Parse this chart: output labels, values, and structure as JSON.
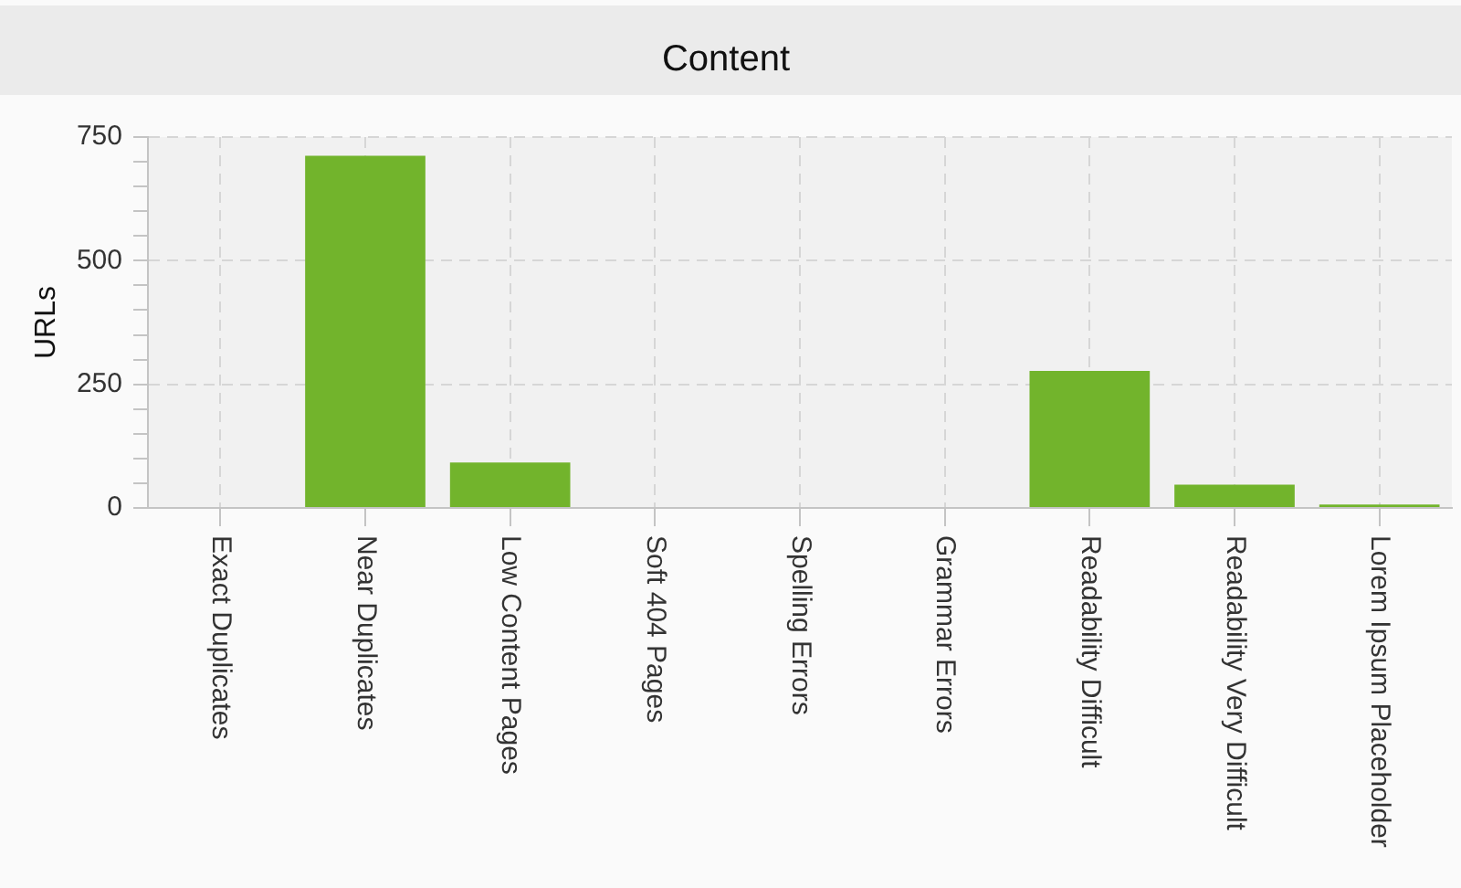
{
  "chart_data": {
    "type": "bar",
    "title": "Content",
    "ylabel": "URLs",
    "categories": [
      "Exact Duplicates",
      "Near Duplicates",
      "Low Content Pages",
      "Soft 404 Pages",
      "Spelling Errors",
      "Grammar Errors",
      "Readability Difficult",
      "Readability Very Difficult",
      "Lorem Ipsum Placeholder"
    ],
    "values": [
      0,
      712,
      92,
      0,
      0,
      0,
      277,
      47,
      7
    ],
    "color": "#72b42c",
    "ylim": [
      0,
      750
    ],
    "yticks": [
      0,
      {
        "value": 50,
        "label": null
      },
      {
        "value": 100,
        "label": null
      },
      {
        "value": 150,
        "label": null
      },
      {
        "value": 200,
        "label": null
      },
      250,
      {
        "value": 300,
        "label": null
      },
      {
        "value": 350,
        "label": null
      },
      {
        "value": 400,
        "label": null
      },
      {
        "value": 450,
        "label": null
      },
      500,
      {
        "value": 550,
        "label": null
      },
      {
        "value": 600,
        "label": null
      },
      {
        "value": 650,
        "label": null
      },
      {
        "value": 700,
        "label": null
      },
      750
    ],
    "grid": true
  }
}
